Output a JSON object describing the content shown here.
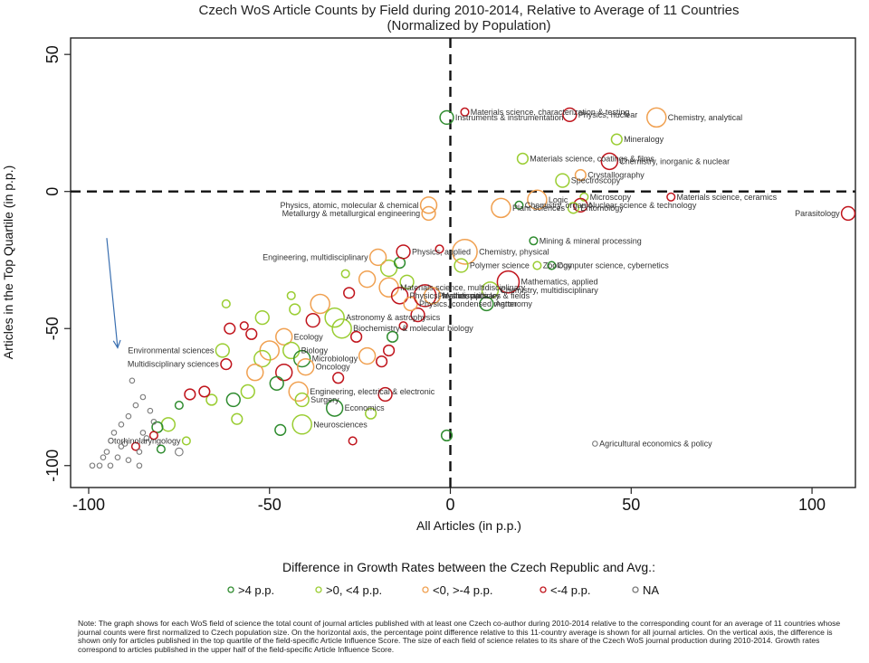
{
  "chart_data": {
    "type": "scatter",
    "title": "Czech WoS Article Counts by Field during 2010-2014, Relative to Average of 11 Countries",
    "subtitle": "(Normalized by Population)",
    "xlabel": "All Articles (in p.p.)",
    "ylabel": "Articles in the Top Quartile (in p.p.)",
    "xlim": [
      -105,
      112
    ],
    "ylim": [
      -108,
      56
    ],
    "xticks": [
      -100,
      -50,
      0,
      50,
      100
    ],
    "yticks": [
      50,
      0,
      -50,
      -100
    ],
    "tick_labels_x": [
      "-100",
      "-50",
      "0",
      "50",
      "100"
    ],
    "tick_labels_y": [
      "50",
      "0",
      "-50",
      "-100"
    ],
    "reference_lines": {
      "x": 0,
      "y": 0,
      "style": "dashed"
    },
    "grid": false,
    "legend": {
      "title": "Difference in Growth Rates between the Czech Republic and Avg.:",
      "placement": "bottom",
      "entries": [
        {
          "label": ">4 p.p.",
          "color": "#2e8b2e"
        },
        {
          "label": ">0, <4 p.p.",
          "color": "#9acd32"
        },
        {
          "label": "<0, >-4 p.p.",
          "color": "#f0a050"
        },
        {
          "label": "<-4 p.p.",
          "color": "#c0141c"
        },
        {
          "label": "NA",
          "color": "#7a7a7a"
        }
      ]
    },
    "colors": {
      "g1": "#2e8b2e",
      "g2": "#9acd32",
      "g3": "#f0a050",
      "g4": "#c0141c",
      "na": "#7a7a7a"
    },
    "points": [
      {
        "label": "Instruments & instrumentation",
        "x": -1,
        "y": 27,
        "g": "g1",
        "s": 4
      },
      {
        "label": "Materials science, characterization & testing",
        "x": 4,
        "y": 29,
        "g": "g4",
        "s": 2
      },
      {
        "label": "Physics, nuclear",
        "x": 33,
        "y": 28,
        "g": "g4",
        "s": 4
      },
      {
        "label": "Chemistry, analytical",
        "x": 57,
        "y": 27,
        "g": "g3",
        "s": 6
      },
      {
        "label": "Mineralogy",
        "x": 46,
        "y": 19,
        "g": "g2",
        "s": 3
      },
      {
        "label": "Materials science, coatings & films",
        "x": 20,
        "y": 12,
        "g": "g2",
        "s": 3
      },
      {
        "label": "Chemistry, inorganic & nuclear",
        "x": 44,
        "y": 11,
        "g": "g4",
        "s": 5
      },
      {
        "label": "Crystallography",
        "x": 36,
        "y": 6,
        "g": "g3",
        "s": 3
      },
      {
        "label": "Spectroscopy",
        "x": 31,
        "y": 4,
        "g": "g2",
        "s": 4
      },
      {
        "label": "Materials science, ceramics",
        "x": 61,
        "y": -2,
        "g": "g4",
        "s": 2
      },
      {
        "label": "Microscopy",
        "x": 37,
        "y": -2,
        "g": "g2",
        "s": 2
      },
      {
        "label": "Nuclear science & technology",
        "x": 36,
        "y": -5,
        "g": "g4",
        "s": 4
      },
      {
        "label": "Entomology",
        "x": 34,
        "y": -6,
        "g": "g2",
        "s": 3
      },
      {
        "label": "Parasitology",
        "x": 110,
        "y": -8,
        "g": "g4",
        "s": 4
      },
      {
        "label": "Physics, atomic, molecular & chemical",
        "x": -6,
        "y": -5,
        "g": "g3",
        "s": 5
      },
      {
        "label": "Metallurgy & metallurgical engineering",
        "x": -6,
        "y": -8,
        "g": "g3",
        "s": 4
      },
      {
        "label": "Plant sciences",
        "x": 14,
        "y": -6,
        "g": "g3",
        "s": 6
      },
      {
        "label": "Logic",
        "x": 24,
        "y": -3,
        "g": "g3",
        "s": 6
      },
      {
        "label": "Chemistry, organic",
        "x": 19,
        "y": -5,
        "g": "g1",
        "s": 2
      },
      {
        "label": "Mining & mineral processing",
        "x": 23,
        "y": -18,
        "g": "g1",
        "s": 2
      },
      {
        "label": "Engineering, multidisciplinary",
        "x": -20,
        "y": -24,
        "g": "g3",
        "s": 5
      },
      {
        "label": "Physics, applied",
        "x": -13,
        "y": -22,
        "g": "g4",
        "s": 4
      },
      {
        "label": "Chemistry, physical",
        "x": 4,
        "y": -22,
        "g": "g3",
        "s": 8
      },
      {
        "label": "Zoology",
        "x": 24,
        "y": -27,
        "g": "g2",
        "s": 2
      },
      {
        "label": "Polymer science",
        "x": 3,
        "y": -27,
        "g": "g2",
        "s": 4
      },
      {
        "label": "Computer science, cybernetics",
        "x": 28,
        "y": -27,
        "g": "g1",
        "s": 2
      },
      {
        "label": "Materials science, multidisciplinary",
        "x": -17,
        "y": -35,
        "g": "g3",
        "s": 6
      },
      {
        "label": "Physics, multidisciplinary",
        "x": -14,
        "y": -38,
        "g": "g4",
        "s": 5
      },
      {
        "label": "Physics, condensed matter",
        "x": -11,
        "y": -41,
        "g": "g3",
        "s": 4
      },
      {
        "label": "Physics, particles & fields",
        "x": -7,
        "y": -38,
        "g": "g4",
        "s": 7
      },
      {
        "label": "Mathematics",
        "x": -5,
        "y": -38,
        "g": "g3",
        "s": 5
      },
      {
        "label": "Mathematics, applied",
        "x": 16,
        "y": -33,
        "g": "g4",
        "s": 7
      },
      {
        "label": "Chemistry, multidisciplinary",
        "x": 11,
        "y": -36,
        "g": "g2",
        "s": 5
      },
      {
        "label": "Agronomy",
        "x": 10,
        "y": -41,
        "g": "g1",
        "s": 4
      },
      {
        "label": "Astronomy & astrophysics",
        "x": -32,
        "y": -46,
        "g": "g2",
        "s": 6
      },
      {
        "label": "Biochemistry & molecular biology",
        "x": -30,
        "y": -50,
        "g": "g2",
        "s": 6
      },
      {
        "label": "Ecology",
        "x": -46,
        "y": -53,
        "g": "g3",
        "s": 5
      },
      {
        "label": "Environmental sciences",
        "x": -63,
        "y": -58,
        "g": "g2",
        "s": 4
      },
      {
        "label": "Biology",
        "x": -44,
        "y": -58,
        "g": "g2",
        "s": 5
      },
      {
        "label": "Microbiology",
        "x": -41,
        "y": -61,
        "g": "g1",
        "s": 5
      },
      {
        "label": "Oncology",
        "x": -40,
        "y": -64,
        "g": "g3",
        "s": 5
      },
      {
        "label": "Multidisciplinary sciences",
        "x": -62,
        "y": -63,
        "g": "g4",
        "s": 3
      },
      {
        "label": "Engineering, electrical & electronic",
        "x": -42,
        "y": -73,
        "g": "g3",
        "s": 6
      },
      {
        "label": "Surgery",
        "x": -41,
        "y": -76,
        "g": "g2",
        "s": 4
      },
      {
        "label": "Economics",
        "x": -32,
        "y": -79,
        "g": "g1",
        "s": 5
      },
      {
        "label": "Neurosciences",
        "x": -41,
        "y": -85,
        "g": "g2",
        "s": 6
      },
      {
        "label": "Otorhinolaryngology",
        "x": -73,
        "y": -91,
        "g": "g2",
        "s": 2
      },
      {
        "label": "Agricultural economics & policy",
        "x": 40,
        "y": -92,
        "g": "na",
        "s": 1
      }
    ],
    "unlabeled_points": [
      {
        "x": -17,
        "y": -28,
        "g": "g2",
        "s": 5
      },
      {
        "x": -14,
        "y": -26,
        "g": "g1",
        "s": 3
      },
      {
        "x": -12,
        "y": -33,
        "g": "g2",
        "s": 4
      },
      {
        "x": -3,
        "y": -21,
        "g": "g4",
        "s": 2
      },
      {
        "x": -23,
        "y": -32,
        "g": "g3",
        "s": 5
      },
      {
        "x": -28,
        "y": -37,
        "g": "g4",
        "s": 3
      },
      {
        "x": -36,
        "y": -41,
        "g": "g3",
        "s": 6
      },
      {
        "x": -38,
        "y": -47,
        "g": "g4",
        "s": 4
      },
      {
        "x": -43,
        "y": -43,
        "g": "g2",
        "s": 3
      },
      {
        "x": -52,
        "y": -46,
        "g": "g2",
        "s": 4
      },
      {
        "x": -55,
        "y": -52,
        "g": "g4",
        "s": 3
      },
      {
        "x": -57,
        "y": -49,
        "g": "g4",
        "s": 2
      },
      {
        "x": -61,
        "y": -50,
        "g": "g4",
        "s": 3
      },
      {
        "x": -50,
        "y": -58,
        "g": "g3",
        "s": 6
      },
      {
        "x": -52,
        "y": -61,
        "g": "g2",
        "s": 5
      },
      {
        "x": -54,
        "y": -66,
        "g": "g3",
        "s": 5
      },
      {
        "x": -46,
        "y": -66,
        "g": "g4",
        "s": 5
      },
      {
        "x": -48,
        "y": -70,
        "g": "g1",
        "s": 4
      },
      {
        "x": -56,
        "y": -73,
        "g": "g2",
        "s": 4
      },
      {
        "x": -60,
        "y": -76,
        "g": "g1",
        "s": 4
      },
      {
        "x": -66,
        "y": -76,
        "g": "g2",
        "s": 3
      },
      {
        "x": -68,
        "y": -73,
        "g": "g4",
        "s": 3
      },
      {
        "x": -72,
        "y": -74,
        "g": "g4",
        "s": 3
      },
      {
        "x": -75,
        "y": -78,
        "g": "g1",
        "s": 2
      },
      {
        "x": -78,
        "y": -85,
        "g": "g2",
        "s": 4
      },
      {
        "x": -81,
        "y": -86,
        "g": "g1",
        "s": 3
      },
      {
        "x": -82,
        "y": -89,
        "g": "g4",
        "s": 2
      },
      {
        "x": -80,
        "y": -94,
        "g": "g1",
        "s": 2
      },
      {
        "x": -87,
        "y": -93,
        "g": "g4",
        "s": 2
      },
      {
        "x": -59,
        "y": -83,
        "g": "g2",
        "s": 3
      },
      {
        "x": -47,
        "y": -87,
        "g": "g1",
        "s": 3
      },
      {
        "x": -31,
        "y": -68,
        "g": "g4",
        "s": 3
      },
      {
        "x": -18,
        "y": -74,
        "g": "g4",
        "s": 4
      },
      {
        "x": -22,
        "y": -81,
        "g": "g2",
        "s": 3
      },
      {
        "x": -27,
        "y": -91,
        "g": "g4",
        "s": 2
      },
      {
        "x": -1,
        "y": -89,
        "g": "g1",
        "s": 3
      },
      {
        "x": -19,
        "y": -62,
        "g": "g4",
        "s": 3
      },
      {
        "x": -17,
        "y": -58,
        "g": "g4",
        "s": 3
      },
      {
        "x": -23,
        "y": -60,
        "g": "g3",
        "s": 5
      },
      {
        "x": -13,
        "y": -49,
        "g": "g4",
        "s": 2
      },
      {
        "x": -16,
        "y": -53,
        "g": "g1",
        "s": 3
      },
      {
        "x": -26,
        "y": -53,
        "g": "g4",
        "s": 3
      },
      {
        "x": -9,
        "y": -45,
        "g": "g4",
        "s": 4
      },
      {
        "x": -29,
        "y": -30,
        "g": "g2",
        "s": 2
      },
      {
        "x": -44,
        "y": -38,
        "g": "g2",
        "s": 2
      },
      {
        "x": -62,
        "y": -41,
        "g": "g2",
        "s": 2
      },
      {
        "x": -89,
        "y": -82,
        "g": "na",
        "s": 1
      },
      {
        "x": -91,
        "y": -85,
        "g": "na",
        "s": 1
      },
      {
        "x": -93,
        "y": -88,
        "g": "na",
        "s": 1
      },
      {
        "x": -95,
        "y": -95,
        "g": "na",
        "s": 1
      },
      {
        "x": -92,
        "y": -97,
        "g": "na",
        "s": 1
      },
      {
        "x": -97,
        "y": -100,
        "g": "na",
        "s": 1
      },
      {
        "x": -89,
        "y": -98,
        "g": "na",
        "s": 1
      },
      {
        "x": -86,
        "y": -95,
        "g": "na",
        "s": 1
      },
      {
        "x": -84,
        "y": -90,
        "g": "na",
        "s": 1
      },
      {
        "x": -88,
        "y": -69,
        "g": "na",
        "s": 1
      },
      {
        "x": -85,
        "y": -75,
        "g": "na",
        "s": 1
      },
      {
        "x": -87,
        "y": -78,
        "g": "na",
        "s": 1
      },
      {
        "x": -83,
        "y": -80,
        "g": "na",
        "s": 1
      },
      {
        "x": -90,
        "y": -92,
        "g": "na",
        "s": 1
      },
      {
        "x": -94,
        "y": -100,
        "g": "na",
        "s": 1
      },
      {
        "x": -99,
        "y": -100,
        "g": "na",
        "s": 1
      },
      {
        "x": -86,
        "y": -100,
        "g": "na",
        "s": 1
      },
      {
        "x": -75,
        "y": -95,
        "g": "na",
        "s": 2
      },
      {
        "x": -82,
        "y": -84,
        "g": "na",
        "s": 1
      },
      {
        "x": -85,
        "y": -88,
        "g": "na",
        "s": 1
      },
      {
        "x": -91,
        "y": -93,
        "g": "na",
        "s": 1
      },
      {
        "x": -96,
        "y": -97,
        "g": "na",
        "s": 1
      }
    ],
    "annotation_arrow": {
      "from": [
        -95,
        -17
      ],
      "to": [
        -92,
        -57
      ]
    }
  },
  "note": "Note: The graph shows for each WoS field of science the total count of journal articles published with at least one Czech co-author during 2010-2014 relative to the corresponding count for an average of 11 countries whose journal counts were first normalized to Czech population size. On the horizontal axis, the percentage point difference relative to this 11-country average is shown for all journal articles. On the vertical axis, the difference is shown only for articles published in the top quartile of the field-specific Article Influence Score. The size of each field of science relates to its share of the Czech WoS journal production during 2010-2014. Growth rates correspond to articles published in the upper half of the field-specific Article Influence Score."
}
